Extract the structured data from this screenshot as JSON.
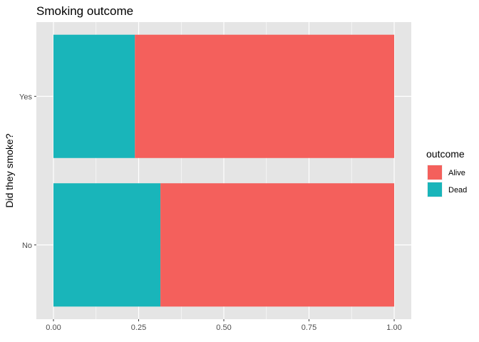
{
  "chart_data": {
    "type": "bar",
    "orientation": "horizontal",
    "stacked": "fill",
    "title": "Smoking outcome",
    "xlabel": "",
    "ylabel": "Did they smoke?",
    "categories": [
      "Yes",
      "No"
    ],
    "xlim": [
      0,
      1
    ],
    "x_ticks": [
      "0.00",
      "0.25",
      "0.50",
      "0.75",
      "1.00"
    ],
    "x_tick_values": [
      0,
      0.25,
      0.5,
      0.75,
      1.0
    ],
    "grid": true,
    "legend_position": "right",
    "legend_title": "outcome",
    "series": [
      {
        "name": "Dead",
        "color": "#19B5BA",
        "values": [
          0.239,
          0.314
        ]
      },
      {
        "name": "Alive",
        "color": "#F4605C",
        "values": [
          0.761,
          0.686
        ]
      }
    ],
    "legend_order": [
      "Alive",
      "Dead"
    ],
    "panel_background": "#E5E5E5",
    "grid_color": "#FFFFFF"
  }
}
